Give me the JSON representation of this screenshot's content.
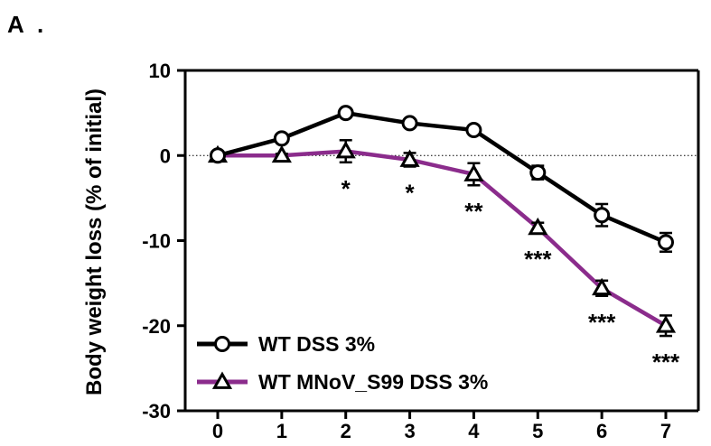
{
  "panel_label": "A .",
  "chart_data": {
    "type": "line",
    "title": "",
    "xlabel": "",
    "ylabel": "Body weight loss (% of initial)",
    "x": [
      0,
      1,
      2,
      3,
      4,
      5,
      6,
      7
    ],
    "xlim": [
      0,
      7
    ],
    "ylim": [
      -30,
      10
    ],
    "yticks": [
      10,
      0,
      -10,
      -20,
      -30
    ],
    "xtick_labels": [
      "0",
      "1",
      "2",
      "3",
      "4",
      "5",
      "6",
      "7"
    ],
    "ytick_labels": [
      "10",
      "0",
      "-10",
      "-20",
      "-30"
    ],
    "reference_line": {
      "y": 0,
      "style": "dotted"
    },
    "legend_position": "bottom-left",
    "series": [
      {
        "name": "WT DSS 3%",
        "color": "#000000",
        "marker": "circle",
        "values": [
          0,
          2,
          5,
          3.8,
          3,
          -2,
          -7,
          -10.2
        ],
        "errors": [
          0,
          0.3,
          0.4,
          0.3,
          0.3,
          0.8,
          1.3,
          1.1
        ]
      },
      {
        "name": "WT MNoV_S99 DSS 3%",
        "color": "#8B2C8C",
        "marker": "triangle",
        "values": [
          0,
          0,
          0.5,
          -0.5,
          -2.2,
          -8.5,
          -15.6,
          -20
        ],
        "errors": [
          0,
          0.2,
          1.3,
          0.8,
          1.3,
          0.6,
          0.9,
          1.2
        ]
      }
    ],
    "annotations": [
      {
        "x": 2,
        "text": "*"
      },
      {
        "x": 3,
        "text": "*"
      },
      {
        "x": 4,
        "text": "**"
      },
      {
        "x": 5,
        "text": "***"
      },
      {
        "x": 6,
        "text": "***"
      },
      {
        "x": 7,
        "text": "***"
      }
    ]
  }
}
